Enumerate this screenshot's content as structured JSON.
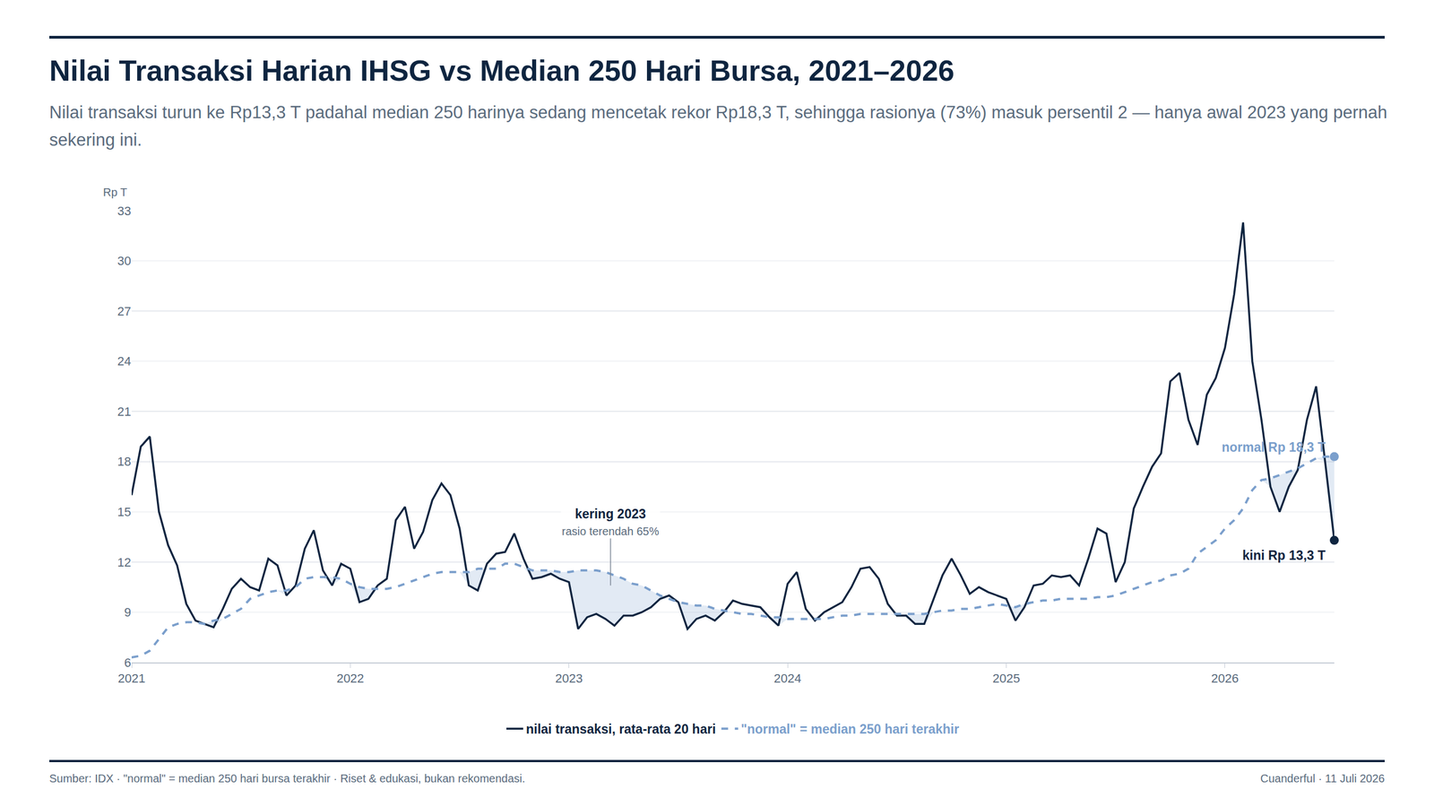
{
  "chart_data": {
    "type": "line",
    "title": "Nilai Transaksi Harian IHSG vs Median 250 Hari Bursa, 2021–2026",
    "subtitle": "Nilai transaksi turun ke Rp13,3 T padahal median 250 harinya sedang mencetak rekor Rp18,3 T, sehingga rasionya (73%) masuk persentil 2 — hanya awal 2023 yang pernah sekering ini.",
    "y_label": "Rp T",
    "x": [
      2021,
      2021.042,
      2021.083,
      2021.125,
      2021.167,
      2021.208,
      2021.25,
      2021.292,
      2021.333,
      2021.375,
      2021.417,
      2021.458,
      2021.5,
      2021.542,
      2021.583,
      2021.625,
      2021.667,
      2021.708,
      2021.75,
      2021.792,
      2021.833,
      2021.875,
      2021.917,
      2021.958,
      2022,
      2022.042,
      2022.083,
      2022.125,
      2022.167,
      2022.208,
      2022.25,
      2022.292,
      2022.333,
      2022.375,
      2022.417,
      2022.458,
      2022.5,
      2022.542,
      2022.583,
      2022.625,
      2022.667,
      2022.708,
      2022.75,
      2022.792,
      2022.833,
      2022.875,
      2022.917,
      2022.958,
      2023,
      2023.042,
      2023.083,
      2023.125,
      2023.167,
      2023.208,
      2023.25,
      2023.292,
      2023.333,
      2023.375,
      2023.417,
      2023.458,
      2023.5,
      2023.542,
      2023.583,
      2023.625,
      2023.667,
      2023.708,
      2023.75,
      2023.792,
      2023.833,
      2023.875,
      2023.917,
      2023.958,
      2024,
      2024.042,
      2024.083,
      2024.125,
      2024.167,
      2024.208,
      2024.25,
      2024.292,
      2024.333,
      2024.375,
      2024.417,
      2024.458,
      2024.5,
      2024.542,
      2024.583,
      2024.625,
      2024.667,
      2024.708,
      2024.75,
      2024.792,
      2024.833,
      2024.875,
      2024.917,
      2024.958,
      2025,
      2025.042,
      2025.083,
      2025.125,
      2025.167,
      2025.208,
      2025.25,
      2025.292,
      2025.333,
      2025.375,
      2025.417,
      2025.458,
      2025.5,
      2025.542,
      2025.583,
      2025.625,
      2025.667,
      2025.708,
      2025.75,
      2025.792,
      2025.833,
      2025.875,
      2025.917,
      2025.958,
      2026,
      2026.042,
      2026.083,
      2026.125,
      2026.167,
      2026.208,
      2026.25,
      2026.292,
      2026.333,
      2026.375,
      2026.417,
      2026.458,
      2026.5
    ],
    "series": [
      {
        "name": "nilai transaksi, rata-rata 20 hari",
        "color": "#0f2540",
        "line_style": "solid",
        "end_label": "kini Rp 13,3 T",
        "values": [
          16.0,
          18.9,
          19.5,
          15.0,
          13.0,
          11.8,
          9.5,
          8.5,
          8.3,
          8.1,
          9.2,
          10.4,
          11.0,
          10.5,
          10.3,
          12.2,
          11.8,
          10.0,
          10.6,
          12.8,
          13.9,
          11.5,
          10.6,
          11.9,
          11.6,
          9.6,
          9.8,
          10.6,
          11.0,
          14.5,
          15.3,
          12.8,
          13.8,
          15.7,
          16.7,
          16.0,
          14.0,
          10.6,
          10.3,
          11.9,
          12.5,
          12.6,
          13.7,
          12.2,
          11.0,
          11.1,
          11.3,
          11.0,
          10.8,
          8.0,
          8.7,
          8.9,
          8.6,
          8.2,
          8.8,
          8.8,
          9.0,
          9.3,
          9.8,
          10.0,
          9.6,
          8.0,
          8.6,
          8.8,
          8.5,
          9.0,
          9.7,
          9.5,
          9.4,
          9.3,
          8.7,
          8.2,
          10.7,
          11.4,
          9.2,
          8.5,
          9.0,
          9.3,
          9.6,
          10.5,
          11.6,
          11.7,
          11.0,
          9.5,
          8.8,
          8.8,
          8.3,
          8.3,
          9.8,
          11.2,
          12.2,
          11.2,
          10.1,
          10.5,
          10.2,
          10.0,
          9.8,
          8.5,
          9.3,
          10.6,
          10.7,
          11.2,
          11.1,
          11.2,
          10.6,
          12.2,
          14.0,
          13.7,
          10.8,
          12.0,
          15.2,
          16.5,
          17.7,
          18.5,
          22.8,
          23.3,
          20.5,
          19.0,
          22.0,
          23.0,
          24.8,
          28.0,
          32.3,
          24.0,
          20.5,
          16.5,
          15.0,
          16.5,
          17.5,
          20.5,
          22.5,
          18.0,
          13.3
        ]
      },
      {
        "name": "\"normal\" = median 250 hari terakhir",
        "color": "#7b9fcc",
        "line_style": "dash",
        "end_label": "normal Rp 18,3 T",
        "values": [
          6.3,
          6.4,
          6.7,
          7.4,
          8.1,
          8.3,
          8.4,
          8.4,
          8.3,
          8.5,
          8.6,
          8.9,
          9.2,
          9.8,
          10.0,
          10.2,
          10.3,
          10.3,
          10.5,
          11.0,
          11.1,
          11.1,
          11.1,
          11.0,
          10.7,
          10.5,
          10.4,
          10.4,
          10.4,
          10.5,
          10.7,
          10.9,
          11.1,
          11.3,
          11.4,
          11.4,
          11.4,
          11.4,
          11.6,
          11.6,
          11.6,
          11.9,
          11.9,
          11.7,
          11.5,
          11.5,
          11.5,
          11.4,
          11.4,
          11.5,
          11.5,
          11.5,
          11.4,
          11.2,
          11.0,
          10.7,
          10.6,
          10.3,
          10.0,
          9.8,
          9.6,
          9.5,
          9.4,
          9.4,
          9.2,
          9.1,
          9.0,
          8.9,
          8.9,
          8.8,
          8.7,
          8.7,
          8.6,
          8.6,
          8.6,
          8.6,
          8.6,
          8.7,
          8.8,
          8.8,
          8.9,
          8.9,
          8.9,
          8.9,
          8.9,
          8.9,
          8.9,
          8.9,
          9.0,
          9.1,
          9.1,
          9.2,
          9.2,
          9.3,
          9.4,
          9.5,
          9.4,
          9.3,
          9.5,
          9.6,
          9.7,
          9.7,
          9.8,
          9.8,
          9.8,
          9.8,
          9.9,
          9.9,
          10.0,
          10.2,
          10.4,
          10.6,
          10.8,
          10.9,
          11.2,
          11.3,
          11.6,
          12.5,
          12.9,
          13.3,
          14.0,
          14.5,
          15.2,
          16.3,
          16.9,
          17.0,
          17.2,
          17.4,
          17.6,
          17.9,
          18.2,
          18.3,
          18.3
        ]
      }
    ],
    "xlim": [
      2021,
      2026.5
    ],
    "xticks": [
      2021,
      2022,
      2023,
      2024,
      2025,
      2026
    ],
    "ylim": [
      6,
      33
    ],
    "yticks": [
      6,
      9,
      12,
      15,
      18,
      21,
      24,
      27,
      30,
      33
    ],
    "grid": true,
    "legend": "bottom",
    "annotations": [
      {
        "x": 2023.19,
        "y": 10.6,
        "text": "kering 2023",
        "subtext": "rasio terendah 65%"
      }
    ],
    "source": "Sumber: IDX · \"normal\" = median 250 hari bursa terakhir · Riset & edukasi, bukan rekomendasi.",
    "credit": "Cuanderful · 11 Juli 2026"
  }
}
